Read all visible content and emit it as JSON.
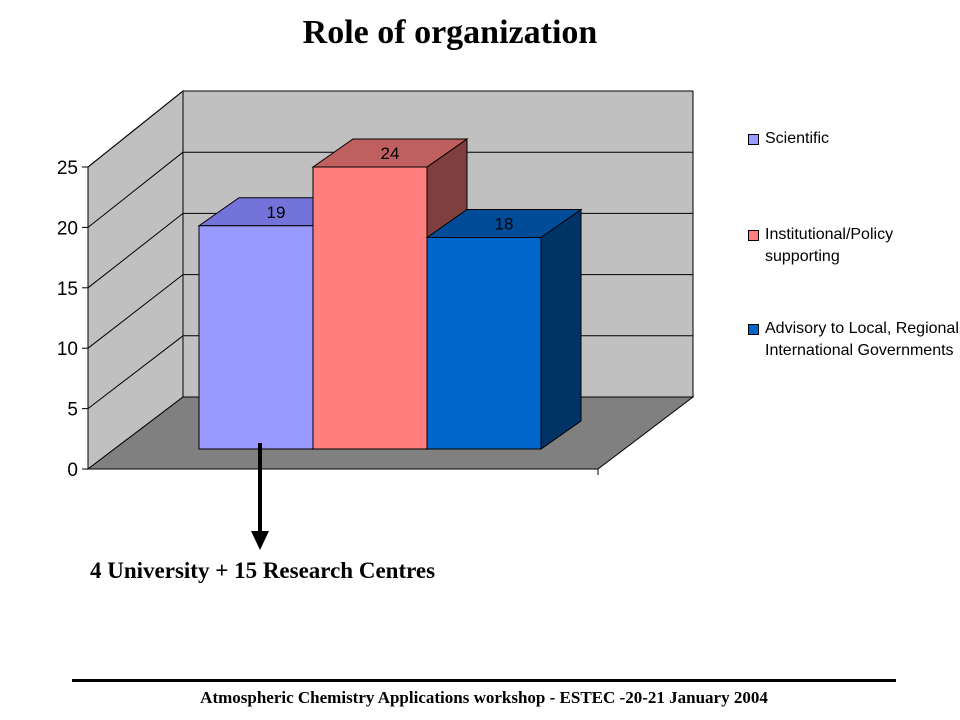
{
  "title": "Role of organization",
  "annotation": "4 University + 15 Research Centres",
  "footer": "Atmospheric Chemistry Applications workshop - ESTEC -20-21 January 2004",
  "chart_data": {
    "type": "bar",
    "style": "3d-clustered-column",
    "ylim": [
      0,
      25
    ],
    "yticks": [
      "0",
      "5",
      "10",
      "15",
      "20",
      "25"
    ],
    "grid": true,
    "legend_position": "right",
    "series": [
      {
        "name": "Scientific",
        "value": 19,
        "label": "19",
        "color": "#9999ff",
        "side_color": "#6666cc",
        "top_color": "#7373d9"
      },
      {
        "name": "Institutional/Policy supporting",
        "value": 24,
        "label": "24",
        "color": "#ff7f7f",
        "side_color": "#7f3f3f",
        "top_color": "#bf5f5f"
      },
      {
        "name": "Advisory to Local, Regional, International Governments",
        "value": 18,
        "label": "18",
        "color": "#0066cc",
        "side_color": "#003366",
        "top_color": "#004c99"
      }
    ],
    "colors": {
      "wall": "#c0c0c0",
      "floor": "#808080",
      "grid": "#000000"
    }
  }
}
